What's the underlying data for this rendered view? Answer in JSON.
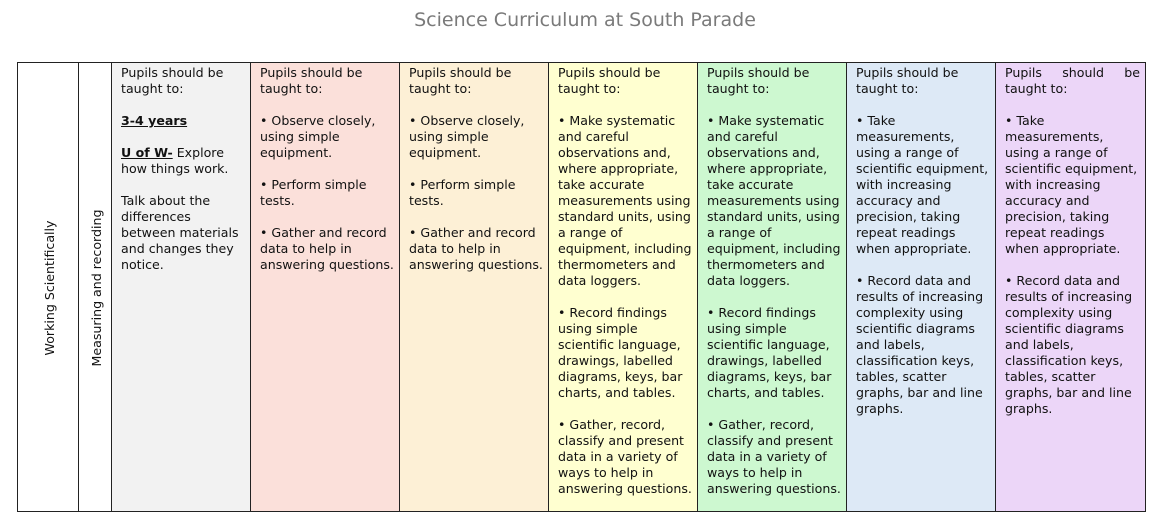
{
  "title": "Science Curriculum at South Parade",
  "row_labels": {
    "strand": "Working Scientifically",
    "sub_strand": "Measuring and recording"
  },
  "columns": [
    {
      "color": "#f2f2f2",
      "intro_line1": "Pupils should be",
      "intro_line2": "taught to:",
      "heading": "3-4 years",
      "uw_label": "U of W-",
      "uw_text": " Explore how things work.",
      "extra": "Talk about the differences between materials and changes they notice."
    },
    {
      "color": "#fbe0da",
      "intro": "Pupils should be taught to:",
      "items": [
        "• Observe closely, using simple equipment.",
        "• Perform simple tests.",
        "• Gather and record data to help in answering questions."
      ]
    },
    {
      "color": "#fdf0d6",
      "intro": "Pupils should be taught to:",
      "items": [
        "• Observe closely, using simple equipment.",
        "• Perform simple tests.",
        "• Gather and record data to help in answering questions."
      ]
    },
    {
      "color": "#ffffd0",
      "intro": "Pupils should be taught to:",
      "items": [
        "• Make systematic and careful observations and, where appropriate, take accurate measurements using standard units, using a range of equipment, including thermometers and data loggers.",
        "• Record findings using simple scientific language, drawings, labelled diagrams, keys, bar charts, and tables.",
        "• Gather, record, classify and present data in a variety of ways to help in answering questions."
      ]
    },
    {
      "color": "#cdf8d0",
      "intro": "Pupils should be taught to:",
      "items": [
        "• Make systematic and careful observations and, where appropriate, take accurate measurements using standard units, using a range of equipment, including thermometers and data loggers.",
        "• Record findings using simple scientific language, drawings, labelled diagrams, keys, bar charts, and tables.",
        "• Gather, record, classify and present data in a variety of ways to help in answering questions."
      ]
    },
    {
      "color": "#dde9f6",
      "intro": "Pupils should be taught to:",
      "items": [
        "• Take measurements, using a range of scientific equipment, with increasing accuracy and precision, taking repeat readings when appropriate.",
        "• Record data and results of increasing complexity using scientific diagrams and labels, classification keys, tables, scatter graphs, bar and line graphs."
      ]
    },
    {
      "color": "#ecd6f8",
      "intro_line1": "Pupils should be",
      "intro_line2": "taught to:",
      "items": [
        "• Take measurements, using a range of scientific equipment, with increasing accuracy and precision, taking repeat readings when appropriate.",
        "• Record data and results of increasing complexity using scientific diagrams and labels, classification keys, tables, scatter graphs, bar and line graphs."
      ]
    }
  ]
}
